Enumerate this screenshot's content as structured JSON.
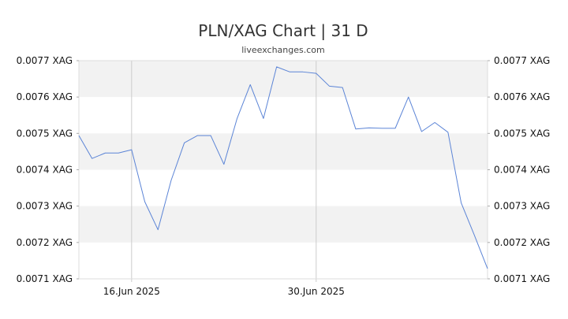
{
  "chart_data": {
    "type": "line",
    "title": "PLN/XAG Chart | 31 D",
    "subtitle": "liveexchanges.com",
    "xlabel": "",
    "ylabel": "",
    "ylim": [
      0.0071,
      0.0077
    ],
    "y_ticks": [
      0.0077,
      0.0076,
      0.0075,
      0.0074,
      0.0073,
      0.0072,
      0.0071
    ],
    "y_tick_labels": [
      "0.0077 XAG",
      "0.0076 XAG",
      "0.0075 XAG",
      "0.0074 XAG",
      "0.0073 XAG",
      "0.0072 XAG",
      "0.0071 XAG"
    ],
    "x_tick_labels": [
      "16.Jun 2025",
      "30.Jun 2025"
    ],
    "x_tick_index": [
      4,
      18
    ],
    "grid": true,
    "legend": "none",
    "series_color": "#5b84d6",
    "band_color": "#f2f2f2",
    "values": [
      0.007494,
      0.007431,
      0.007446,
      0.007446,
      0.007455,
      0.007312,
      0.007235,
      0.007371,
      0.007474,
      0.007494,
      0.007494,
      0.007415,
      0.007541,
      0.007634,
      0.007541,
      0.007683,
      0.007669,
      0.007669,
      0.007665,
      0.00763,
      0.007626,
      0.007512,
      0.007515,
      0.007514,
      0.007514,
      0.0076,
      0.007505,
      0.00753,
      0.007503,
      0.007309,
      0.00722,
      0.007128
    ]
  }
}
